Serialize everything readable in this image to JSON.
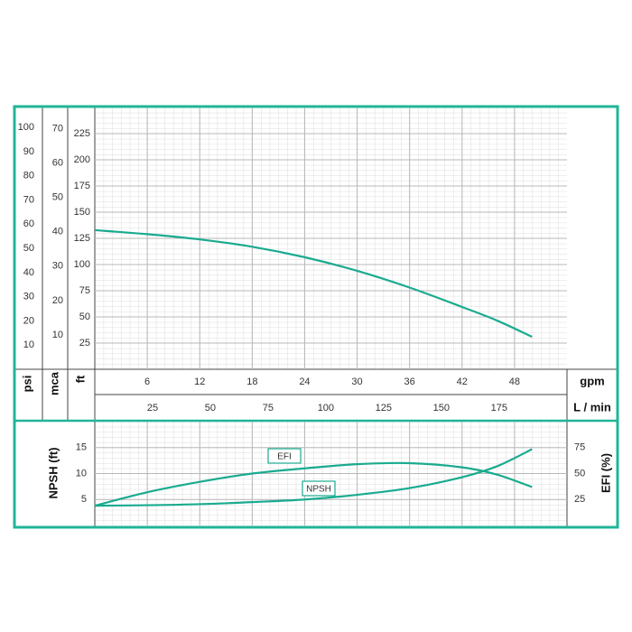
{
  "chart_data": [
    {
      "type": "line",
      "x": [
        0,
        6,
        12,
        18,
        24,
        30,
        36,
        42,
        46,
        50
      ],
      "series": [
        {
          "color": "#1aab8f",
          "values": [
            132.8,
            129,
            124,
            117,
            107,
            94,
            78,
            59.5,
            46.5,
            31
          ]
        }
      ],
      "xlim": [
        0,
        54
      ],
      "xticks": [
        6,
        12,
        18,
        24,
        30,
        36,
        42,
        48
      ],
      "x_label": "gpm",
      "x2lim": [
        0,
        204.4
      ],
      "x2ticks": [
        25,
        50,
        75,
        100,
        125,
        150,
        175
      ],
      "x2_label": "L / min",
      "ylim": [
        0,
        250
      ],
      "yticks": [
        25,
        50,
        75,
        100,
        125,
        150,
        175,
        200,
        225
      ],
      "y_label": "ft",
      "psi_lim": [
        0,
        108.3
      ],
      "psi_ticks": [
        10,
        20,
        30,
        40,
        50,
        60,
        70,
        80,
        90,
        100
      ],
      "psi_label": "psi",
      "mca_lim": [
        0,
        76.2
      ],
      "mca_ticks": [
        10,
        20,
        30,
        40,
        50,
        60,
        70
      ],
      "mca_label": "mca",
      "grid": true
    },
    {
      "type": "line",
      "x": [
        0,
        6,
        12,
        18,
        24,
        30,
        36,
        42,
        46,
        50
      ],
      "xlim": [
        0,
        54
      ],
      "ylim": [
        0,
        20
      ],
      "yticks": [
        5,
        10,
        15
      ],
      "y_label": "NPSH (ft)",
      "y2lim": [
        0,
        100
      ],
      "y2ticks": [
        25,
        50,
        75
      ],
      "y2_label": "EFI (%)",
      "series": [
        {
          "name": "EFI",
          "axis": "y2",
          "color": "#1aab8f",
          "values": [
            19,
            32,
            42,
            50,
            55,
            59,
            60,
            56,
            49,
            37
          ]
        },
        {
          "name": "NPSH",
          "color": "#1aab8f",
          "values": [
            3.8,
            3.9,
            4.1,
            4.5,
            5.0,
            5.9,
            7.2,
            9.3,
            11.4,
            14.7
          ]
        }
      ],
      "grid": true
    }
  ]
}
